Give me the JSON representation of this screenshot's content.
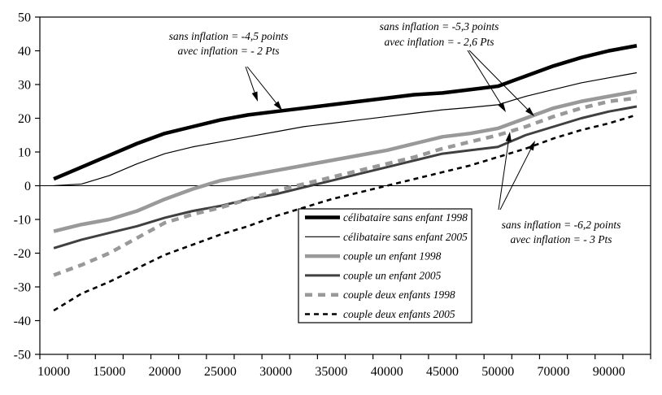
{
  "page": {
    "background": "#ffffff"
  },
  "chart_data": {
    "type": "line",
    "title": "",
    "xlabel": "",
    "ylabel": "",
    "ylim": [
      -50,
      50
    ],
    "y_ticks": [
      50,
      40,
      30,
      20,
      10,
      0,
      -10,
      -20,
      -30,
      -40,
      -50
    ],
    "zero_line": true,
    "grid": false,
    "axis_color": "#000000",
    "x_categories": [
      10000,
      12500,
      15000,
      17500,
      20000,
      22500,
      25000,
      27500,
      30000,
      32500,
      35000,
      37500,
      40000,
      42500,
      45000,
      47500,
      50000,
      60000,
      70000,
      80000,
      90000,
      100000
    ],
    "x_tick_labels": [
      "10000",
      "15000",
      "20000",
      "25000",
      "30000",
      "35000",
      "40000",
      "45000",
      "50000",
      "70000",
      "90000"
    ],
    "x_labeled_category_indices": [
      0,
      2,
      4,
      6,
      8,
      10,
      12,
      14,
      16,
      18,
      20
    ],
    "series": [
      {
        "name": "célibataire sans enfant 1998",
        "color": "#000000",
        "stroke_width": 4.5,
        "dash": null,
        "values": [
          2,
          5.5,
          9,
          12.5,
          15.5,
          17.5,
          19.5,
          21,
          22,
          23,
          24,
          25,
          26,
          27,
          27.5,
          28.5,
          29.5,
          32.5,
          35.5,
          38,
          40,
          41.5
        ]
      },
      {
        "name": "célibataire sans enfant 2005",
        "color": "#000000",
        "stroke_width": 1.2,
        "dash": null,
        "values": [
          0,
          0.5,
          3,
          6.5,
          9.5,
          11.5,
          13,
          14.5,
          16,
          17.5,
          18.5,
          19.5,
          20.5,
          21.5,
          22.5,
          23.2,
          24,
          26.5,
          28.5,
          30.5,
          32,
          33.5
        ]
      },
      {
        "name": "couple un enfant 1998",
        "color": "#999999",
        "stroke_width": 4.5,
        "dash": null,
        "values": [
          -13.5,
          -11.5,
          -10,
          -7.5,
          -4,
          -1,
          1.5,
          3,
          4.5,
          6,
          7.5,
          9,
          10.5,
          12.5,
          14.5,
          15.5,
          17,
          20,
          23,
          25,
          26.5,
          28
        ]
      },
      {
        "name": "couple un enfant 2005",
        "color": "#404040",
        "stroke_width": 3,
        "dash": null,
        "values": [
          -18.5,
          -16,
          -14,
          -12,
          -9.5,
          -7.5,
          -6,
          -4,
          -2.5,
          -0.5,
          1.5,
          3.5,
          5.5,
          7.5,
          9.5,
          10.5,
          11.5,
          15,
          17.5,
          20,
          22,
          23.5
        ]
      },
      {
        "name": "couple deux enfants 1998",
        "color": "#999999",
        "stroke_width": 4.5,
        "dash": "9 7",
        "values": [
          -26.5,
          -23.5,
          -20,
          -15.5,
          -11,
          -8.5,
          -6.5,
          -4,
          -1.5,
          0.5,
          2.5,
          4.5,
          6.5,
          8.5,
          11,
          13,
          15,
          17.5,
          20.5,
          23,
          25,
          26
        ]
      },
      {
        "name": "couple deux enfants  2005",
        "color": "#000000",
        "stroke_width": 2.6,
        "dash": "6 5",
        "values": [
          -37,
          -32,
          -28.5,
          -24.5,
          -20.5,
          -17.5,
          -14.5,
          -12,
          -9,
          -6.5,
          -4,
          -2,
          0,
          2,
          4,
          6,
          8.5,
          11,
          14,
          16.5,
          18.5,
          21
        ]
      }
    ],
    "legend": {
      "entries": [
        "célibataire sans enfant 1998",
        "célibataire sans enfant 2005",
        "couple un enfant 1998",
        "couple un enfant 2005",
        "couple deux enfants 1998",
        "couple deux enfants  2005"
      ],
      "position": "inside-bottom-center",
      "border_color": "#000000",
      "background": "#ffffff"
    },
    "annotations": [
      {
        "lines": [
          "sans inflation = -4,5 points",
          "avec inflation = - 2 Pts"
        ],
        "cx": 281,
        "baselines": [
          49,
          67
        ],
        "arrows": [
          {
            "from": [
              302,
              82
            ],
            "to": [
              317,
              125
            ]
          },
          {
            "from": [
              304,
              82
            ],
            "to": [
              347,
              136
            ]
          }
        ]
      },
      {
        "lines": [
          "sans inflation = -5,3 points",
          "avec inflation =  - 2,6 Pts"
        ],
        "cx": 540,
        "baselines": [
          37,
          56
        ],
        "arrows": [
          {
            "from": [
              575,
              62
            ],
            "to": [
              622,
              138
            ]
          },
          {
            "from": [
              577,
              62
            ],
            "to": [
              657,
              143
            ]
          }
        ]
      },
      {
        "lines": [
          "sans inflation = -6,2 points",
          "avec inflation = - 3 Pts"
        ],
        "cx": 690,
        "baselines": [
          281,
          299
        ],
        "arrows": [
          {
            "from": [
              613,
              258
            ],
            "to": [
              627,
              162
            ]
          },
          {
            "from": [
              615,
              258
            ],
            "to": [
              658,
              173
            ]
          }
        ]
      }
    ]
  }
}
